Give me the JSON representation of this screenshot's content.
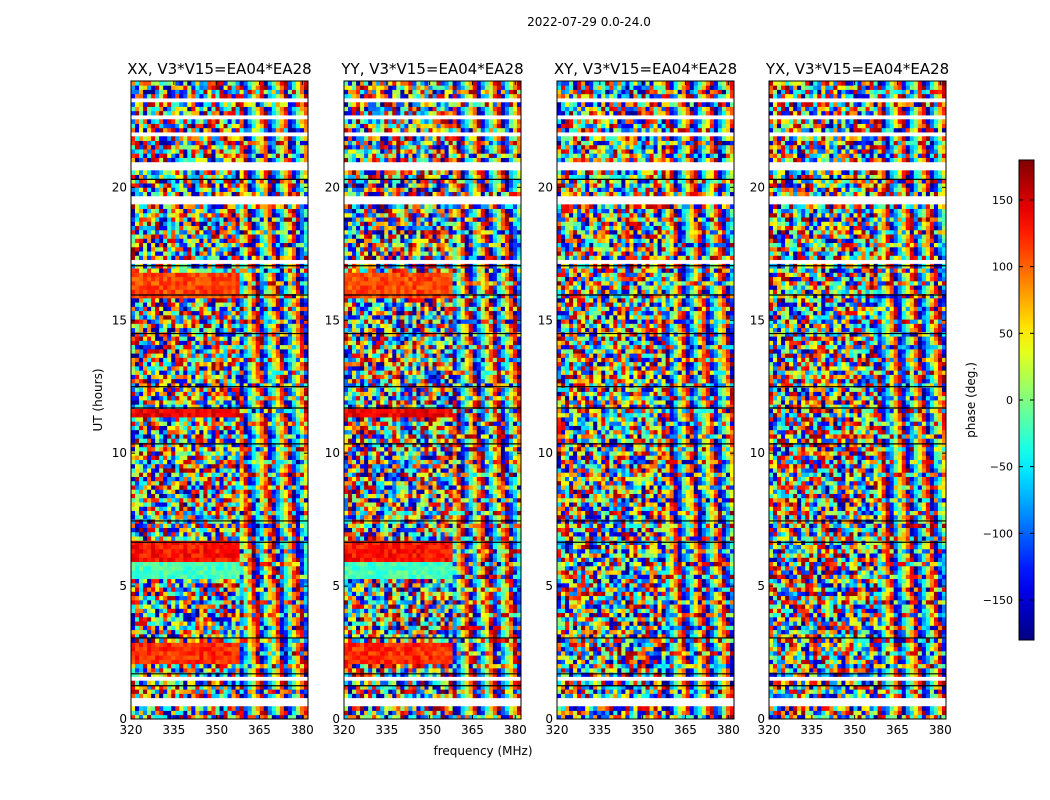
{
  "figure": {
    "suptitle": "2022-07-29 0.0-24.0",
    "xlabel": "frequency (MHz)",
    "ylabel": "UT (hours)"
  },
  "chart_data": {
    "type": "heatmap",
    "title": "2022-07-29 0.0-24.0",
    "xlabel": "frequency (MHz)",
    "ylabel": "UT (hours)",
    "xlim": [
      320,
      382
    ],
    "ylim": [
      0,
      24
    ],
    "x_ticks": [
      320,
      335,
      350,
      365,
      380
    ],
    "y_ticks": [
      0,
      5,
      10,
      15,
      20
    ],
    "panels": [
      {
        "title": "XX, V3*V15=EA04*EA28",
        "pol": "XX"
      },
      {
        "title": "YY, V3*V15=EA04*EA28",
        "pol": "YY"
      },
      {
        "title": "XY, V3*V15=EA04*EA28",
        "pol": "XY"
      },
      {
        "title": "YX, V3*V15=EA04*EA28",
        "pol": "YX"
      }
    ],
    "flagged_gaps_hours": [
      [
        0.55,
        0.75
      ],
      [
        1.45,
        1.62
      ],
      [
        7.0,
        7.12
      ],
      [
        17.15,
        17.3
      ],
      [
        19.35,
        19.6
      ],
      [
        20.6,
        20.95
      ],
      [
        21.4,
        21.5
      ],
      [
        22.0,
        22.15
      ],
      [
        22.6,
        22.75
      ],
      [
        23.2,
        23.35
      ]
    ],
    "coherent_bands_hours": [
      {
        "range": [
          2.1,
          2.8
        ],
        "phase_deg": 120,
        "panels": [
          "XX",
          "YY"
        ]
      },
      {
        "range": [
          5.25,
          5.9
        ],
        "phase_deg": -20,
        "panels": [
          "XX",
          "YY"
        ]
      },
      {
        "range": [
          6.0,
          6.7
        ],
        "phase_deg": 130,
        "panels": [
          "XX",
          "YY"
        ]
      },
      {
        "range": [
          11.3,
          11.6
        ],
        "phase_deg": 140,
        "panels": [
          "XX",
          "YY"
        ]
      },
      {
        "range": [
          15.9,
          16.8
        ],
        "phase_deg": 110,
        "panels": [
          "XX",
          "YY"
        ]
      }
    ],
    "colorbar": {
      "label": "phase (deg.)",
      "range": [
        -180,
        180
      ],
      "ticks": [
        150,
        100,
        50,
        0,
        -50,
        -100,
        -150
      ],
      "tick_labels": [
        "150",
        "100",
        "50",
        "0",
        "−50",
        "−100",
        "−150"
      ],
      "colormap": "jet"
    }
  }
}
